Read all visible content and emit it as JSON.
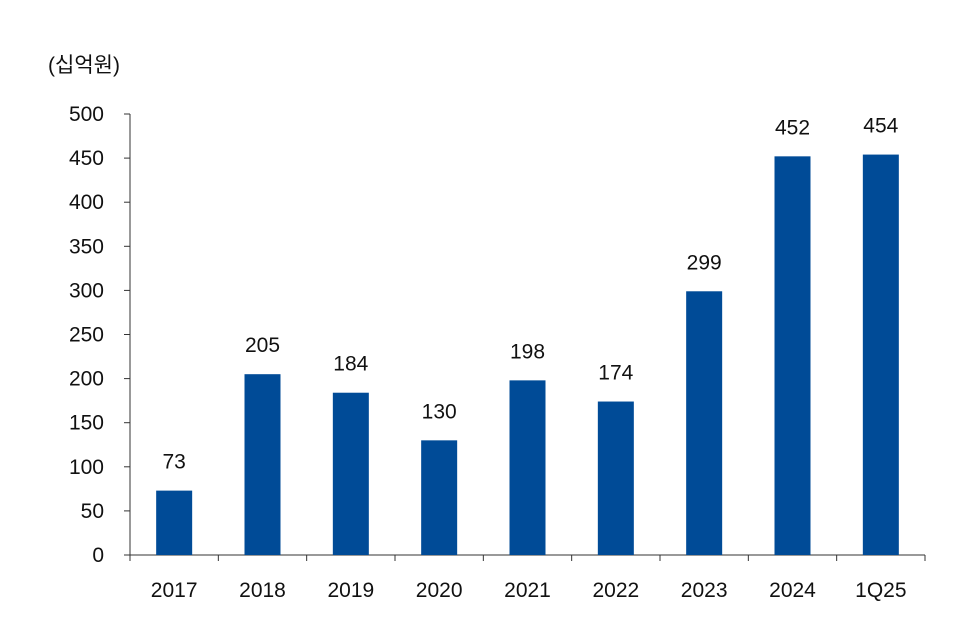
{
  "chart_data": {
    "type": "bar",
    "title": "",
    "unit_label": "(십억원)",
    "xlabel": "",
    "ylabel": "",
    "categories": [
      "2017",
      "2018",
      "2019",
      "2020",
      "2021",
      "2022",
      "2023",
      "2024",
      "1Q25"
    ],
    "values": [
      73,
      205,
      184,
      130,
      198,
      174,
      299,
      452,
      454
    ],
    "ylim": [
      0,
      500
    ],
    "yticks": [
      0,
      50,
      100,
      150,
      200,
      250,
      300,
      350,
      400,
      450,
      500
    ],
    "bar_color": "#004b97",
    "grid": false,
    "legend": "none"
  }
}
